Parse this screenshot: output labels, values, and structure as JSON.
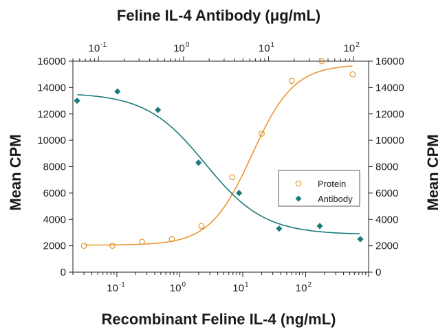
{
  "chart_data": {
    "type": "scatter",
    "title": "Feline IL-4 Antibody (μg/mL)",
    "xlabel": "Recombinant Feline IL-4 (ng/mL)",
    "ylabel": "Mean CPM",
    "ylabel_right": "Mean CPM",
    "x_scale": "log",
    "xlim": [
      0.02,
      1000
    ],
    "ylim": [
      0,
      16000
    ],
    "y_ticks": [
      0,
      2000,
      4000,
      6000,
      8000,
      10000,
      12000,
      14000,
      16000
    ],
    "y_tick_labels": [
      "0",
      "2000",
      "4000",
      "6000",
      "8000",
      "10000",
      "12000",
      "14000",
      "16000"
    ],
    "bottom_ticks": [
      {
        "exp": "-1",
        "value": 0.1
      },
      {
        "exp": "0",
        "value": 1
      },
      {
        "exp": "1",
        "value": 10
      },
      {
        "exp": "2",
        "value": 100
      }
    ],
    "top_axis": {
      "title": "Feline IL-4 Antibody (μg/mL)",
      "scale": "log",
      "xlim": [
        0.05,
        150
      ],
      "ticks": [
        {
          "exp": "-1",
          "value": 0.1
        },
        {
          "exp": "0",
          "value": 1
        },
        {
          "exp": "1",
          "value": 10
        },
        {
          "exp": "2",
          "value": 100
        }
      ]
    },
    "legend": {
      "position": "center-right",
      "entries": [
        "Protein",
        "Antibody"
      ]
    },
    "series": [
      {
        "name": "Protein",
        "color": "#e8962e",
        "marker": "open-circle",
        "axis": "bottom",
        "x": [
          0.03,
          0.085,
          0.25,
          0.75,
          2.2,
          6.8,
          20,
          60,
          180,
          560
        ],
        "y": [
          2000,
          2000,
          2300,
          2500,
          3500,
          7200,
          10500,
          14500,
          16000,
          15000
        ],
        "fit": {
          "bottom": 2050,
          "top": 15750,
          "ec50": 14,
          "hill": 1.3
        }
      },
      {
        "name": "Antibody",
        "color": "#1b7a7a",
        "marker": "filled-diamond",
        "axis": "top",
        "x": [
          0.056,
          0.167,
          0.5,
          1.5,
          4.5,
          13.3,
          40,
          120
        ],
        "y": [
          13000,
          13700,
          12300,
          8300,
          6000,
          3300,
          3500,
          2500
        ],
        "fit": {
          "bottom": 2850,
          "top": 13600,
          "ic50": 1.8,
          "hill": 1.25
        }
      }
    ]
  }
}
